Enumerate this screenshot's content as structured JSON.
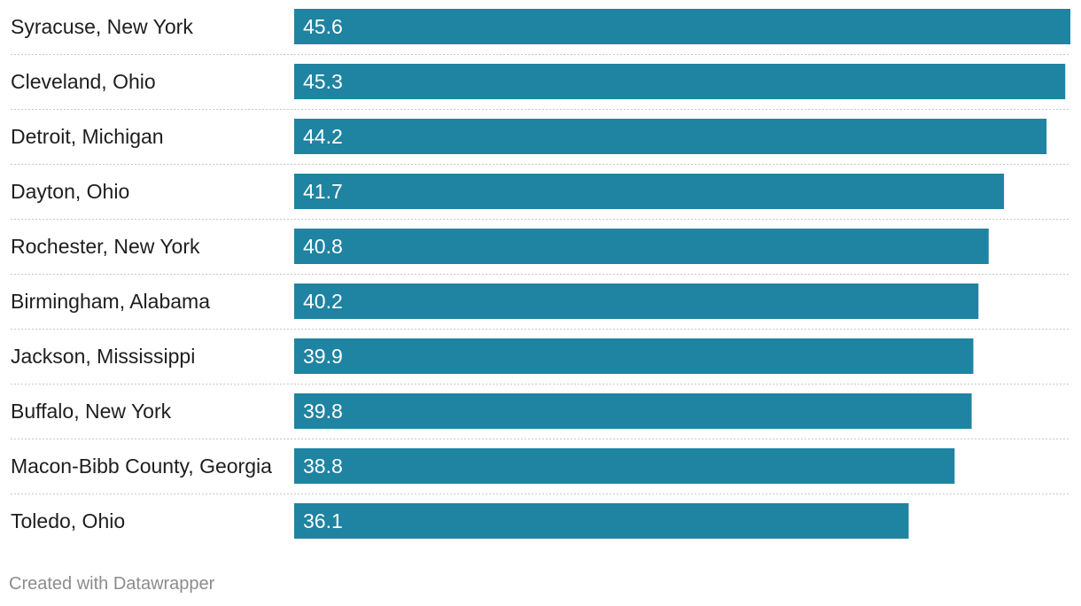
{
  "chart_data": {
    "type": "bar",
    "orientation": "horizontal",
    "categories": [
      "Syracuse, New York",
      "Cleveland, Ohio",
      "Detroit, Michigan",
      "Dayton, Ohio",
      "Rochester, New York",
      "Birmingham, Alabama",
      "Jackson, Mississippi",
      "Buffalo, New York",
      "Macon-Bibb County, Georgia",
      "Toledo, Ohio"
    ],
    "values": [
      45.6,
      45.3,
      44.2,
      41.7,
      40.8,
      40.2,
      39.9,
      39.8,
      38.8,
      36.1
    ],
    "value_labels": [
      "45.6",
      "45.3",
      "44.2",
      "41.7",
      "40.8",
      "40.2",
      "39.9",
      "39.8",
      "38.8",
      "36.1"
    ],
    "xlim": [
      0,
      45.6
    ],
    "bar_color": "#1f83a2",
    "grid": false,
    "legend": "none"
  },
  "footer": {
    "credit": "Created with Datawrapper"
  }
}
